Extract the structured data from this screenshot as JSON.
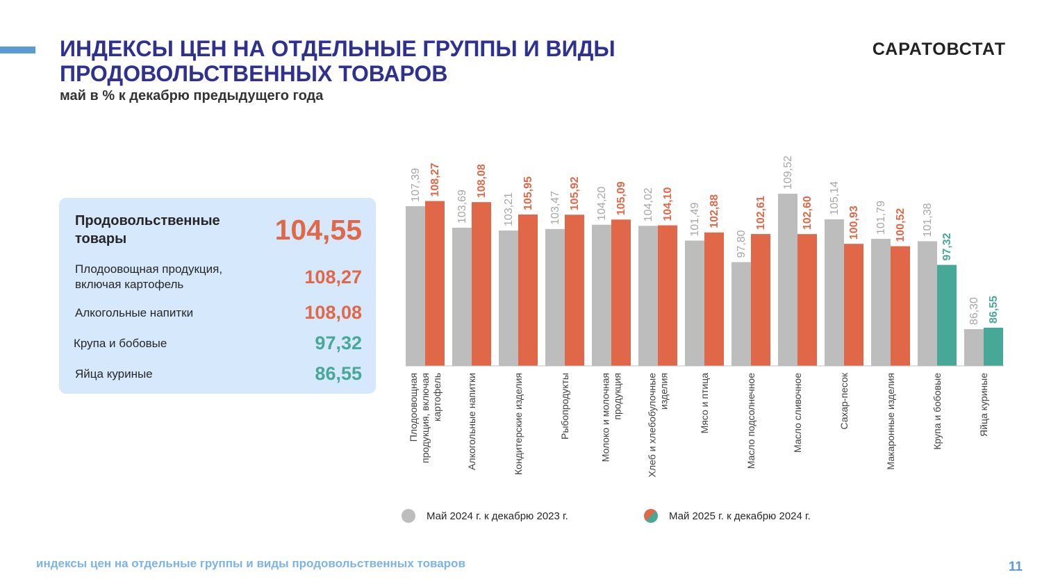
{
  "header": {
    "title_line1": "ИНДЕКСЫ ЦЕН НА ОТДЕЛЬНЫЕ ГРУППЫ И ВИДЫ",
    "title_line2": "ПРОДОВОЛЬСТВЕННЫХ ТОВАРОВ",
    "subtitle": "май в % к декабрю предыдущего года",
    "brand": "САРАТОВСТАТ"
  },
  "summary": {
    "main_label": "Продовольственные товары",
    "main_value": "104,55",
    "items": [
      {
        "label": "Плодоовощная продукция, включая картофель",
        "value": "108,27",
        "tone": "red"
      },
      {
        "label": "Алкогольные напитки",
        "value": "108,08",
        "tone": "red"
      },
      {
        "label": "Крупа и бобовые",
        "value": "97,32",
        "tone": "green"
      },
      {
        "label": "Яйца куриные",
        "value": "86,55",
        "tone": "green"
      }
    ]
  },
  "chart_data": {
    "type": "bar",
    "categories": [
      "Плодоовощная продукция, включая картофель",
      "Алкогольные напитки",
      "Кондитерские изделия",
      "Рыбопродукты",
      "Молоко и молочная продукция",
      "Хлеб и хлебобулочные изделия",
      "Мясо и птица",
      "Масло подсолнечное",
      "Масло сливочное",
      "Сахар-песок",
      "Макаронные изделия",
      "Крупа и бобовые",
      "Яйца куриные"
    ],
    "series": [
      {
        "name": "Май 2024 г. к декабрю  2023 г.",
        "values": [
          107.39,
          103.69,
          103.21,
          103.47,
          104.2,
          104.02,
          101.49,
          97.8,
          109.52,
          105.14,
          101.79,
          101.38,
          86.3
        ],
        "color": "#bdbdbd"
      },
      {
        "name": "Май  2025 г. к декабрю  2024 г.",
        "values": [
          108.27,
          108.08,
          105.95,
          105.92,
          105.09,
          104.1,
          102.88,
          102.61,
          102.6,
          100.93,
          100.52,
          97.32,
          86.55
        ],
        "color": "#e06848",
        "color_below_100": "#48a898"
      }
    ],
    "ylim": [
      80,
      112
    ],
    "legend_position": "bottom",
    "grid": false
  },
  "colors": {
    "title": "#2e3192",
    "red": "#e06848",
    "green": "#48a898",
    "gray": "#bdbdbd",
    "panel": "#d6e8fb"
  },
  "footer": {
    "text": "индексы цен на отдельные группы и виды продовольственных товаров",
    "page": "11"
  }
}
